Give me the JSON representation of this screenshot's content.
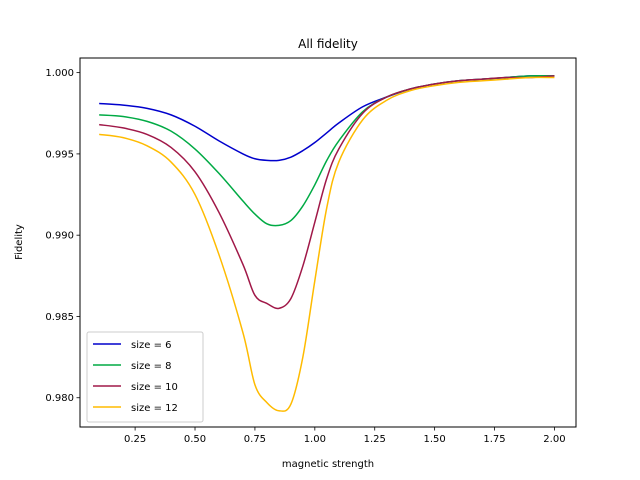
{
  "chart_data": {
    "type": "line",
    "title": "All fidelity",
    "xlabel": "magnetic strength",
    "ylabel": "Fidelity",
    "xlim": [
      0.02,
      2.09
    ],
    "ylim": [
      0.9782,
      1.0009
    ],
    "xticks": [
      0.25,
      0.5,
      0.75,
      1.0,
      1.25,
      1.5,
      1.75,
      2.0
    ],
    "xtick_labels": [
      "0.25",
      "0.50",
      "0.75",
      "1.00",
      "1.25",
      "1.50",
      "1.75",
      "2.00"
    ],
    "yticks": [
      0.98,
      0.985,
      0.99,
      0.995,
      1.0
    ],
    "ytick_labels": [
      "0.980",
      "0.985",
      "0.990",
      "0.995",
      "1.000"
    ],
    "grid": false,
    "legend_position": "lower-left",
    "x": [
      0.1,
      0.2,
      0.3,
      0.4,
      0.5,
      0.6,
      0.7,
      0.75,
      0.8,
      0.85,
      0.9,
      0.95,
      1.0,
      1.05,
      1.1,
      1.2,
      1.3,
      1.4,
      1.5,
      1.6,
      1.7,
      1.8,
      1.9,
      2.0
    ],
    "series": [
      {
        "name": "size = 6",
        "color": "#0000cc",
        "values": [
          0.9981,
          0.998,
          0.9978,
          0.9974,
          0.9967,
          0.9958,
          0.995,
          0.9947,
          0.9946,
          0.9946,
          0.9948,
          0.9952,
          0.9957,
          0.9963,
          0.9969,
          0.9979,
          0.9985,
          0.999,
          0.9993,
          0.9995,
          0.9996,
          0.9997,
          0.9998,
          0.9998
        ]
      },
      {
        "name": "size = 8",
        "color": "#00aa44",
        "values": [
          0.9974,
          0.9973,
          0.997,
          0.9964,
          0.9953,
          0.9938,
          0.9921,
          0.9913,
          0.9907,
          0.9906,
          0.9909,
          0.9918,
          0.9931,
          0.9946,
          0.9958,
          0.9976,
          0.9985,
          0.999,
          0.9993,
          0.9995,
          0.9996,
          0.9997,
          0.9998,
          0.9998
        ]
      },
      {
        "name": "size = 10",
        "color": "#a01848",
        "values": [
          0.9968,
          0.9966,
          0.9962,
          0.9954,
          0.9939,
          0.9914,
          0.9882,
          0.9863,
          0.9858,
          0.9855,
          0.9861,
          0.9881,
          0.9908,
          0.9935,
          0.9953,
          0.9975,
          0.9985,
          0.999,
          0.9993,
          0.9995,
          0.9996,
          0.9997,
          0.9997,
          0.9998
        ]
      },
      {
        "name": "size = 12",
        "color": "#ffbb00",
        "values": [
          0.9962,
          0.996,
          0.9955,
          0.9945,
          0.9925,
          0.9888,
          0.984,
          0.9808,
          0.9797,
          0.9792,
          0.9796,
          0.9825,
          0.9872,
          0.9917,
          0.9945,
          0.9971,
          0.9983,
          0.9989,
          0.9992,
          0.9994,
          0.9995,
          0.9996,
          0.9997,
          0.9997
        ]
      }
    ]
  }
}
